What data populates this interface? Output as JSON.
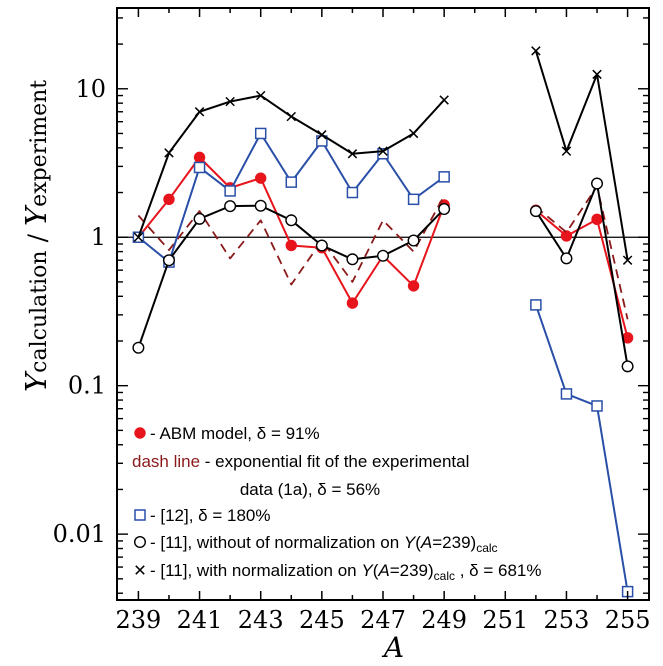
{
  "chart_data": {
    "type": "line",
    "xlabel": "A",
    "ylabel_main": "Y",
    "ylabel_sub1": "calculation",
    "ylabel_sep": "/",
    "ylabel_sub2": "experiment",
    "xlim": [
      238.3,
      255.7
    ],
    "ylim": [
      0.0036,
      35
    ],
    "y_scale": "log",
    "x_ticks": [
      239,
      241,
      243,
      245,
      247,
      249,
      251,
      253,
      255
    ],
    "y_ticks": [
      {
        "v": 0.01,
        "label": "0.01"
      },
      {
        "v": 0.1,
        "label": "0.1"
      },
      {
        "v": 1,
        "label": "1"
      },
      {
        "v": 10,
        "label": "10"
      }
    ],
    "reference_line": 1,
    "series": [
      {
        "name": "ABM model",
        "color": "#e8141c",
        "marker": "filled-circle",
        "style": "solid",
        "segments": [
          [
            [
              239,
              1.0
            ],
            [
              240,
              1.8
            ],
            [
              241,
              3.45
            ],
            [
              242,
              2.15
            ],
            [
              243,
              2.5
            ],
            [
              244,
              0.88
            ],
            [
              245,
              0.85
            ],
            [
              246,
              0.36
            ],
            [
              247,
              0.75
            ],
            [
              248,
              0.47
            ],
            [
              249,
              1.65
            ]
          ],
          [
            [
              252,
              1.52
            ],
            [
              253,
              1.02
            ],
            [
              254,
              1.32
            ],
            [
              255,
              0.21
            ]
          ]
        ]
      },
      {
        "name": "exponential fit of the experimental data (1a)",
        "color": "#8b1a1a",
        "marker": "none",
        "style": "dashed",
        "segments": [
          [
            [
              239,
              1.4
            ],
            [
              240,
              0.82
            ],
            [
              241,
              1.5
            ],
            [
              242,
              0.72
            ],
            [
              243,
              1.3
            ],
            [
              244,
              0.48
            ],
            [
              245,
              0.95
            ],
            [
              246,
              0.5
            ],
            [
              247,
              1.3
            ],
            [
              248,
              0.8
            ],
            [
              249,
              1.9
            ]
          ],
          [
            [
              252,
              1.6
            ],
            [
              253,
              1.08
            ],
            [
              254,
              2.2
            ],
            [
              255,
              0.28
            ]
          ]
        ]
      },
      {
        "name": "[12]",
        "color": "#2a4fa8",
        "marker": "open-square",
        "style": "solid",
        "segments": [
          [
            [
              239,
              1.0
            ],
            [
              240,
              0.68
            ],
            [
              241,
              2.95
            ],
            [
              242,
              2.05
            ],
            [
              243,
              5.0
            ],
            [
              244,
              2.35
            ],
            [
              245,
              4.45
            ],
            [
              246,
              2.0
            ],
            [
              247,
              3.65
            ],
            [
              248,
              1.8
            ],
            [
              249,
              2.55
            ]
          ],
          [
            [
              252,
              0.35
            ],
            [
              253,
              0.088
            ],
            [
              254,
              0.073
            ],
            [
              255,
              0.0041
            ]
          ]
        ]
      },
      {
        "name": "[11], without of normalization",
        "color": "#000000",
        "marker": "open-circle",
        "style": "solid",
        "segments": [
          [
            [
              239,
              0.18
            ],
            [
              240,
              0.7
            ],
            [
              241,
              1.33
            ],
            [
              242,
              1.62
            ],
            [
              243,
              1.63
            ],
            [
              244,
              1.3
            ],
            [
              245,
              0.88
            ],
            [
              246,
              0.71
            ],
            [
              247,
              0.75
            ],
            [
              248,
              0.95
            ],
            [
              249,
              1.55
            ]
          ],
          [
            [
              252,
              1.5
            ],
            [
              253,
              0.72
            ],
            [
              254,
              2.3
            ],
            [
              255,
              0.135
            ]
          ]
        ]
      },
      {
        "name": "[11], with normalization",
        "color": "#000000",
        "marker": "cross",
        "style": "solid",
        "segments": [
          [
            [
              239,
              1.0
            ],
            [
              240,
              3.7
            ],
            [
              241,
              7.0
            ],
            [
              242,
              8.2
            ],
            [
              243,
              9.0
            ],
            [
              244,
              6.5
            ],
            [
              245,
              4.9
            ],
            [
              246,
              3.65
            ],
            [
              247,
              3.8
            ],
            [
              248,
              5.0
            ],
            [
              249,
              8.4
            ]
          ],
          [
            [
              252,
              18.0
            ],
            [
              253,
              3.8
            ],
            [
              254,
              12.5
            ],
            [
              255,
              0.7
            ]
          ]
        ]
      }
    ]
  },
  "legend": {
    "items": [
      {
        "key": "abm",
        "parts": [
          {
            "t": " - ABM model, δ = 91%"
          }
        ]
      },
      {
        "key": "dash",
        "parts": [
          {
            "t": "dash line",
            "red": true
          },
          {
            "t": " - exponential fit of the experimental"
          }
        ]
      },
      {
        "key": "dash2",
        "parts": [
          {
            "t": "data (1a), δ = 56%"
          }
        ]
      },
      {
        "key": "ref12",
        "parts": [
          {
            "t": " - [12], δ = 180%"
          }
        ]
      },
      {
        "key": "ref11a",
        "parts": [
          {
            "t": " - [11], without of normalization on "
          },
          {
            "t": "Y",
            "i": true
          },
          {
            "t": "("
          },
          {
            "t": "A",
            "i": true
          },
          {
            "t": "=239)"
          },
          {
            "t": "calc",
            "sub": true
          }
        ]
      },
      {
        "key": "ref11b",
        "parts": [
          {
            "t": " - [11], with normalization on "
          },
          {
            "t": "Y",
            "i": true
          },
          {
            "t": "("
          },
          {
            "t": "A",
            "i": true
          },
          {
            "t": "=239)"
          },
          {
            "t": "calc",
            "sub": true
          },
          {
            "t": " , δ = 681%"
          }
        ]
      }
    ]
  }
}
